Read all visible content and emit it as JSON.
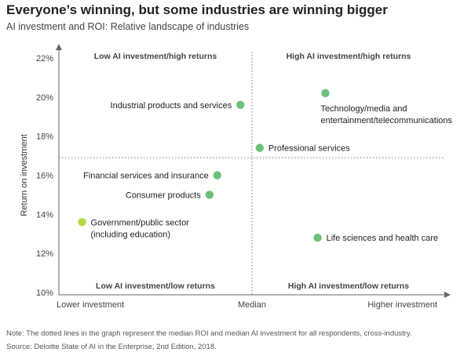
{
  "header": {
    "title": "Everyone’s winning, but some industries are winning bigger",
    "subtitle": "AI investment and ROI: Relative landscape of industries"
  },
  "notes": {
    "note": "Note: The dotted lines in the graph represent the median ROI and median AI investment for all respondents, cross-industry.",
    "source": "Source: Deloitte State of AI in the Enterprise, 2nd Edition, 2018."
  },
  "chart_data": {
    "type": "scatter",
    "title": "Everyone’s winning, but some industries are winning bigger",
    "subtitle": "AI investment and ROI: Relative landscape of industries",
    "ylabel": "Return on investment",
    "xlabel": "",
    "y_unit": "%",
    "ylim": [
      10,
      22
    ],
    "yticks": [
      10,
      12,
      14,
      16,
      18,
      20,
      22
    ],
    "ytick_labels": [
      "10%",
      "12%",
      "14%",
      "16%",
      "18%",
      "20%",
      "22%"
    ],
    "x_scale": "relative investment (0 = lower, 1 = higher)",
    "xlim": [
      0,
      1
    ],
    "x_category_labels": [
      {
        "value": 0,
        "text": "Lower investment"
      },
      {
        "value": 0.5,
        "text": "Median"
      },
      {
        "value": 1,
        "text": "Higher investment"
      }
    ],
    "median_roi": 16.9,
    "median_investment": 0.5,
    "quadrants": [
      {
        "name": "top-left",
        "label": "Low AI investment/high returns"
      },
      {
        "name": "top-right",
        "label": "High AI investment/high returns"
      },
      {
        "name": "bottom-left",
        "label": "Low AI investment/low returns"
      },
      {
        "name": "bottom-right",
        "label": "High AI investment/low returns"
      }
    ],
    "points": [
      {
        "lines": [
          "Technology/media and",
          "entertainment/telecommunications"
        ],
        "x": 0.69,
        "y": 20.2,
        "color": "#6cc07a",
        "label_side": "below-right"
      },
      {
        "lines": [
          "Industrial products and services"
        ],
        "x": 0.47,
        "y": 19.6,
        "color": "#6cc07a",
        "label_side": "left"
      },
      {
        "lines": [
          "Professional services"
        ],
        "x": 0.52,
        "y": 17.4,
        "color": "#6cc07a",
        "label_side": "right"
      },
      {
        "lines": [
          "Financial services and insurance"
        ],
        "x": 0.41,
        "y": 16.0,
        "color": "#6cc07a",
        "label_side": "left"
      },
      {
        "lines": [
          "Consumer products"
        ],
        "x": 0.39,
        "y": 15.0,
        "color": "#6cc07a",
        "label_side": "left"
      },
      {
        "lines": [
          "Government/public sector",
          "(including education)"
        ],
        "x": 0.06,
        "y": 13.6,
        "color": "#b8d94a",
        "label_side": "right"
      },
      {
        "lines": [
          "Life sciences and health care"
        ],
        "x": 0.67,
        "y": 12.8,
        "color": "#6cc07a",
        "label_side": "right"
      }
    ],
    "grid": false,
    "colors": {
      "axis": "#666666",
      "median_line": "#777777",
      "point": "#6cc07a",
      "point_highlight": "#b8d94a"
    }
  }
}
